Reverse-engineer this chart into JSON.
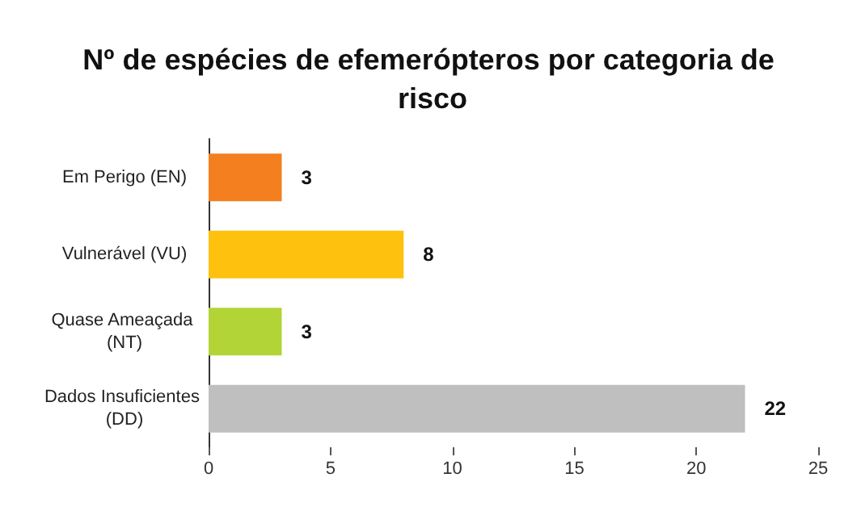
{
  "chart_data": {
    "type": "bar",
    "orientation": "horizontal",
    "title": "Nº de espécies de efemerópteros por categoria de risco",
    "categories": [
      "Em Perigo (EN)",
      "Vulnerável (VU)",
      "Quase Ameaçada (NT)",
      "Dados Insuficientes (DD)"
    ],
    "values": [
      3,
      8,
      3,
      22
    ],
    "colors": [
      "#f47f1e",
      "#fec10d",
      "#b2d436",
      "#bfbfbf"
    ],
    "xlim": [
      0,
      25
    ],
    "xticks": [
      0,
      5,
      10,
      15,
      20,
      25
    ],
    "grid": false,
    "data_labels": true
  }
}
